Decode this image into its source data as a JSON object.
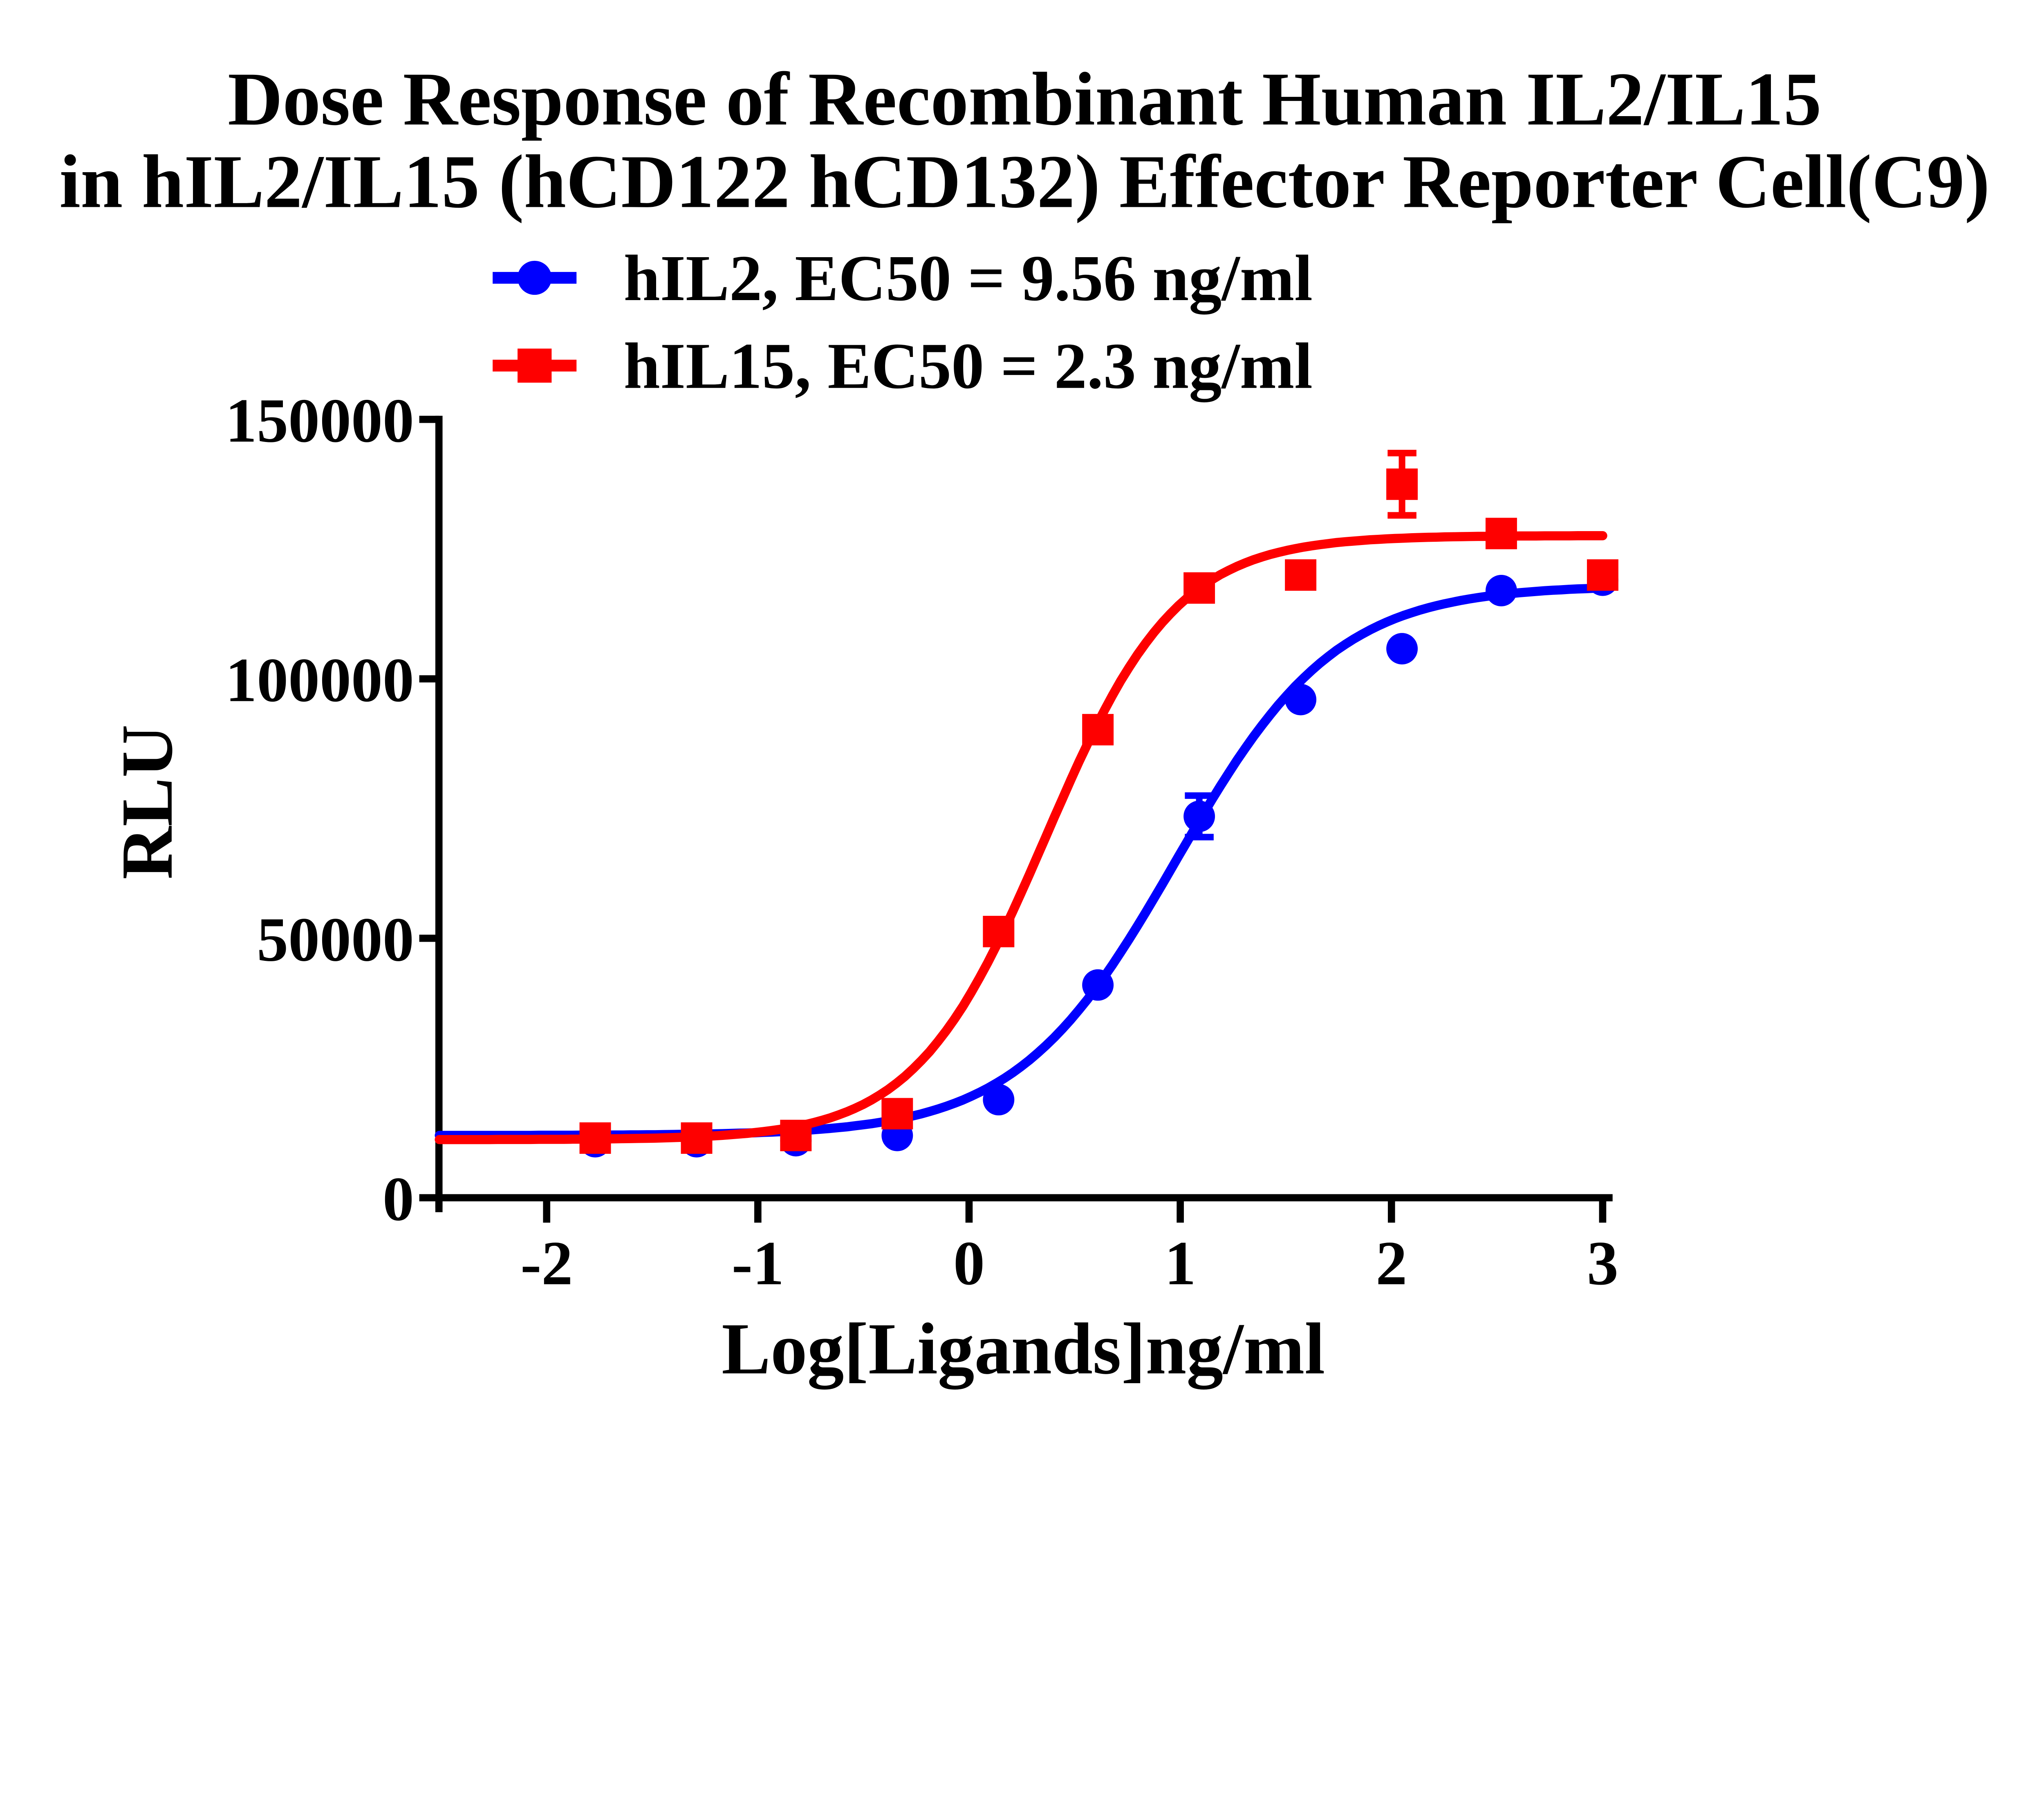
{
  "title": {
    "line1": "Dose Response of Recombinant Human IL2/IL15",
    "line2": "in hIL2/IL15 (hCD122 hCD132) Effector Reporter Cell(C9)"
  },
  "chart_data": {
    "type": "scatter",
    "title": "Dose Response of Recombinant Human IL2/IL15 in hIL2/IL15 (hCD122 hCD132) Effector Reporter Cell(C9)",
    "xlabel": "Log[Ligands]ng/ml",
    "ylabel": "RLU",
    "xlim": [
      -2.51,
      3.03
    ],
    "ylim": [
      0,
      150000
    ],
    "x_ticks": [
      -2,
      -1,
      0,
      1,
      2,
      3
    ],
    "y_ticks": [
      0,
      50000,
      100000,
      150000
    ],
    "grid": false,
    "legend_position": "top-left-above-plot",
    "axis_color": "#000000",
    "background_color": "#ffffff",
    "series": [
      {
        "name": "hIL2",
        "legend_label": "hIL2, EC50 = 9.56 ng/ml",
        "ec50_ng_ml": 9.56,
        "color": "#0000FE",
        "marker": "circle",
        "x_log": [
          -1.77,
          -1.29,
          -0.82,
          -0.34,
          0.14,
          0.61,
          1.09,
          1.57,
          2.05,
          2.52,
          3.0
        ],
        "y_rlu": [
          10800,
          10800,
          11000,
          12000,
          18900,
          41000,
          73500,
          96000,
          105800,
          117000,
          119000
        ],
        "y_err": [
          0,
          0,
          0,
          0,
          0,
          0,
          4000,
          0,
          0,
          0,
          0
        ],
        "fit": {
          "bottom": 12000,
          "top": 118000,
          "log_ec50": 0.9805,
          "hill": 1.15
        }
      },
      {
        "name": "hIL15",
        "legend_label": "hIL15, EC50 = 2.3 ng/ml",
        "ec50_ng_ml": 2.3,
        "color": "#FE0000",
        "marker": "square",
        "x_log": [
          -1.77,
          -1.29,
          -0.82,
          -0.34,
          0.14,
          0.61,
          1.09,
          1.57,
          2.05,
          2.52,
          3.0
        ],
        "y_rlu": [
          11500,
          11500,
          12000,
          16200,
          51300,
          90200,
          117500,
          120000,
          137500,
          128000,
          120000
        ],
        "y_err": [
          0,
          0,
          0,
          0,
          0,
          0,
          0,
          0,
          6000,
          0,
          0
        ],
        "fit": {
          "bottom": 11200,
          "top": 127600,
          "log_ec50": 0.3617,
          "hill": 1.4
        }
      }
    ]
  }
}
